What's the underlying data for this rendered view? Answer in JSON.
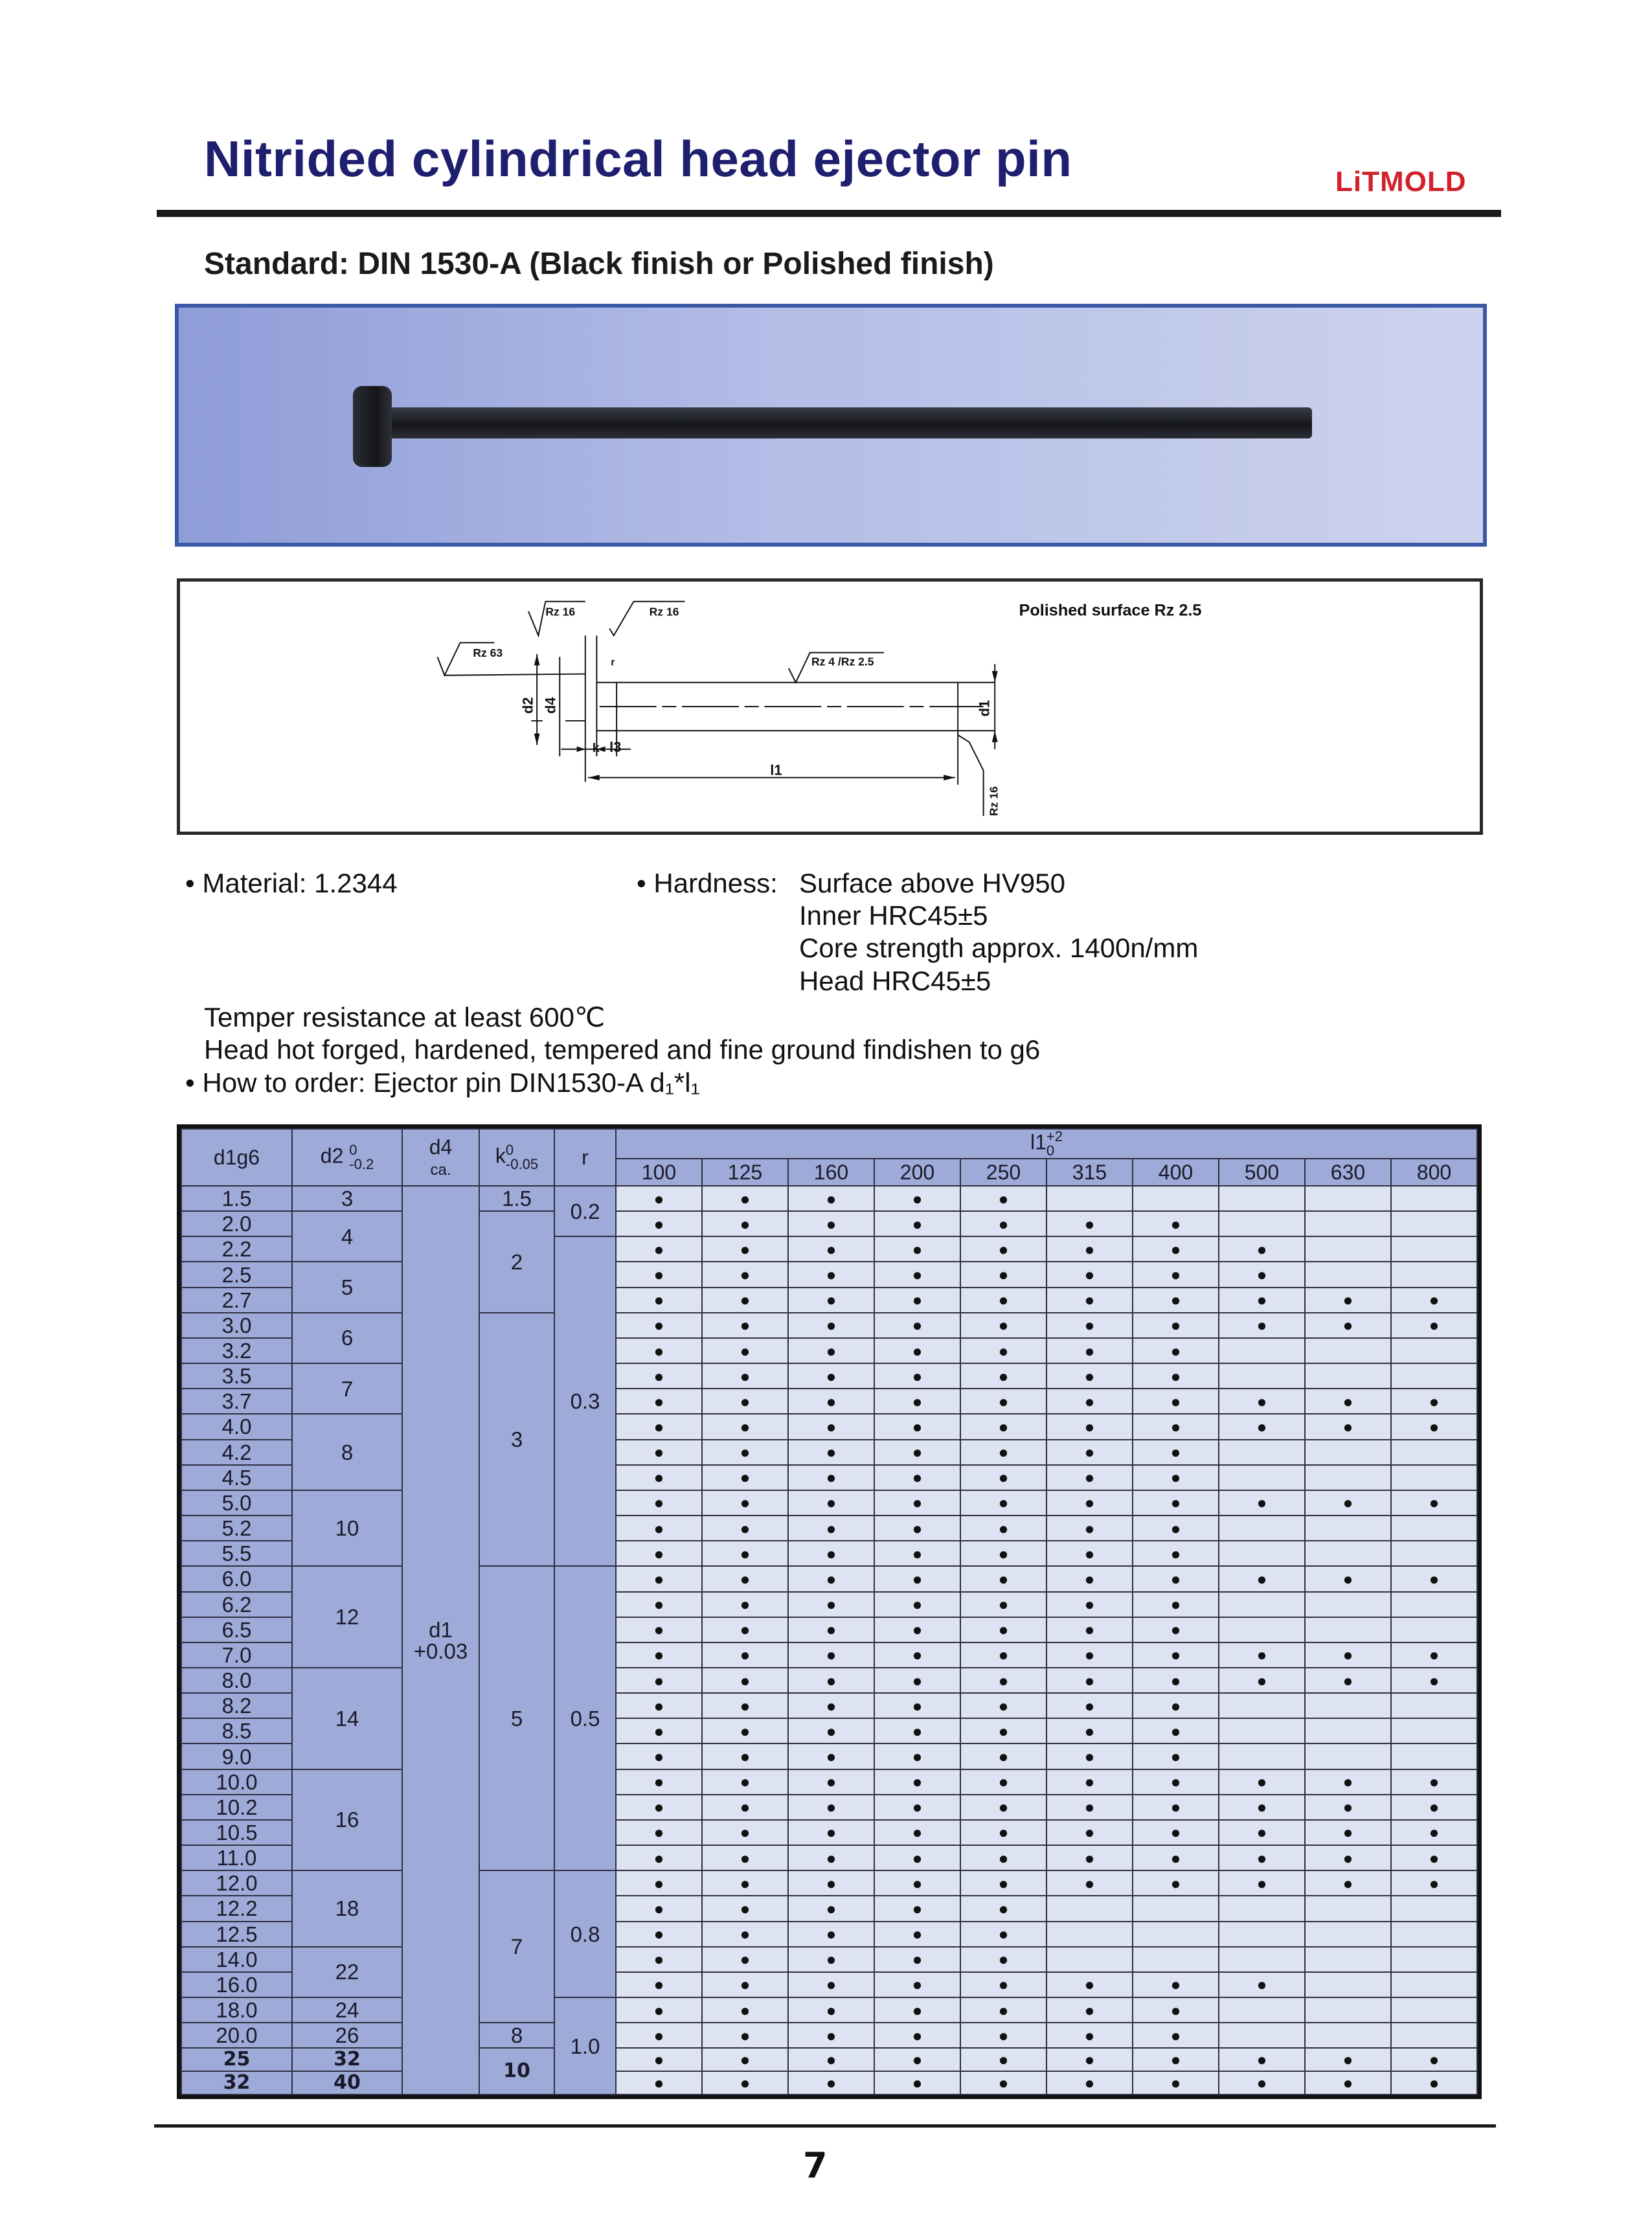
{
  "header": {
    "title": "Nitrided cylindrical head ejector pin",
    "logo": "LiTMOLD",
    "logo_color": "#d1222b",
    "title_color": "#1e1f6e"
  },
  "subtitle": "Standard: DIN 1530-A (Black finish or Polished finish)",
  "drawing": {
    "polished": "Polished surface Rz 2.5",
    "rz16_a": "Rz 16",
    "rz16_b": "Rz 16",
    "rz63": "Rz 63",
    "rz4": "Rz 4 /Rz 2.5",
    "rz16_end": "Rz 16",
    "d1": "d1",
    "d2": "d2",
    "d4": "d4",
    "k": "k",
    "l3": "l3",
    "l1": "l1",
    "r": "r"
  },
  "specs": {
    "material": "• Material: 1.2344",
    "hardness_label": "• Hardness:",
    "hardness": [
      "Surface above HV950",
      "Inner HRC45±5",
      "Core strength approx. 1400n/mm",
      "Head HRC45±5"
    ],
    "temper": "Temper resistance at least 600℃",
    "head": "Head hot forged, hardened, tempered and fine ground findishen to g6",
    "order_label": "• How to order: Ejector pin DIN1530-A ",
    "order_code": "d₁*l₁"
  },
  "table": {
    "headers": {
      "d1": "d1g6",
      "d2": "d2",
      "d2_tol_up": "0",
      "d2_tol_low": "-0.2",
      "d4": "d4",
      "d4_sub": "ca.",
      "k": "k",
      "k_tol_up": "0",
      "k_tol_low": "-0.05",
      "r": "r",
      "l1": "l1",
      "l1_tol_up": "+2",
      "l1_tol_low": "0"
    },
    "l1_values": [
      "100",
      "125",
      "160",
      "200",
      "250",
      "315",
      "400",
      "500",
      "630",
      "800"
    ],
    "d1": [
      "1.5",
      "2.0",
      "2.2",
      "2.5",
      "2.7",
      "3.0",
      "3.2",
      "3.5",
      "3.7",
      "4.0",
      "4.2",
      "4.5",
      "5.0",
      "5.2",
      "5.5",
      "6.0",
      "6.2",
      "6.5",
      "7.0",
      "8.0",
      "8.2",
      "8.5",
      "9.0",
      "10.0",
      "10.2",
      "10.5",
      "11.0",
      "12.0",
      "12.2",
      "12.5",
      "14.0",
      "16.0",
      "18.0",
      "20.0",
      "25",
      "32"
    ],
    "d2_groups": [
      {
        "v": "3",
        "n": 1
      },
      {
        "v": "4",
        "n": 2
      },
      {
        "v": "5",
        "n": 2
      },
      {
        "v": "6",
        "n": 2
      },
      {
        "v": "7",
        "n": 2
      },
      {
        "v": "8",
        "n": 3
      },
      {
        "v": "10",
        "n": 3
      },
      {
        "v": "12",
        "n": 4
      },
      {
        "v": "14",
        "n": 4
      },
      {
        "v": "16",
        "n": 4
      },
      {
        "v": "18",
        "n": 3
      },
      {
        "v": "22",
        "n": 2
      },
      {
        "v": "24",
        "n": 1
      },
      {
        "v": "26",
        "n": 1
      },
      {
        "v": "32",
        "n": 1
      },
      {
        "v": "40",
        "n": 1
      }
    ],
    "d4_value": "d1\n+0.03",
    "k_groups": [
      {
        "v": "1.5",
        "n": 1
      },
      {
        "v": "2",
        "n": 4
      },
      {
        "v": "3",
        "n": 10
      },
      {
        "v": "5",
        "n": 12
      },
      {
        "v": "7",
        "n": 6
      },
      {
        "v": "8",
        "n": 1
      },
      {
        "v": "10",
        "n": 2
      }
    ],
    "r_groups": [
      {
        "v": "0.2",
        "n": 2
      },
      {
        "v": "0.3",
        "n": 13
      },
      {
        "v": "0.5",
        "n": 12
      },
      {
        "v": "0.8",
        "n": 5
      },
      {
        "v": "1.0",
        "n": 4
      }
    ],
    "available_count": [
      5,
      7,
      8,
      8,
      10,
      10,
      7,
      7,
      10,
      10,
      7,
      7,
      10,
      7,
      7,
      10,
      7,
      7,
      10,
      10,
      7,
      7,
      7,
      10,
      10,
      10,
      10,
      10,
      5,
      5,
      5,
      8,
      7,
      7,
      10,
      10
    ],
    "dot": "●"
  },
  "page_number": "7"
}
